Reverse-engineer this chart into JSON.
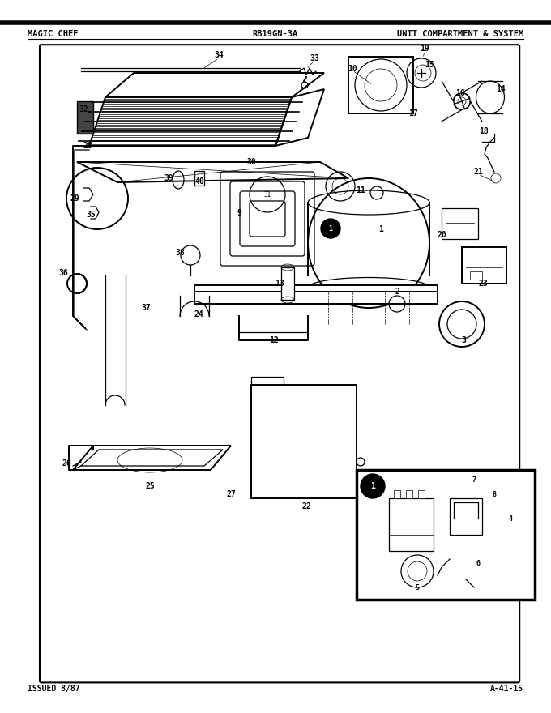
{
  "title_left": "MAGIC CHEF",
  "title_center": "RB19GN-3A",
  "title_right": "UNIT COMPARTMENT & SYSTEM",
  "footer_left": "ISSUED 8/87",
  "footer_right": "A-41-15",
  "bg_color": "#ffffff",
  "fig_width": 6.8,
  "fig_height": 8.8,
  "dpi": 100
}
